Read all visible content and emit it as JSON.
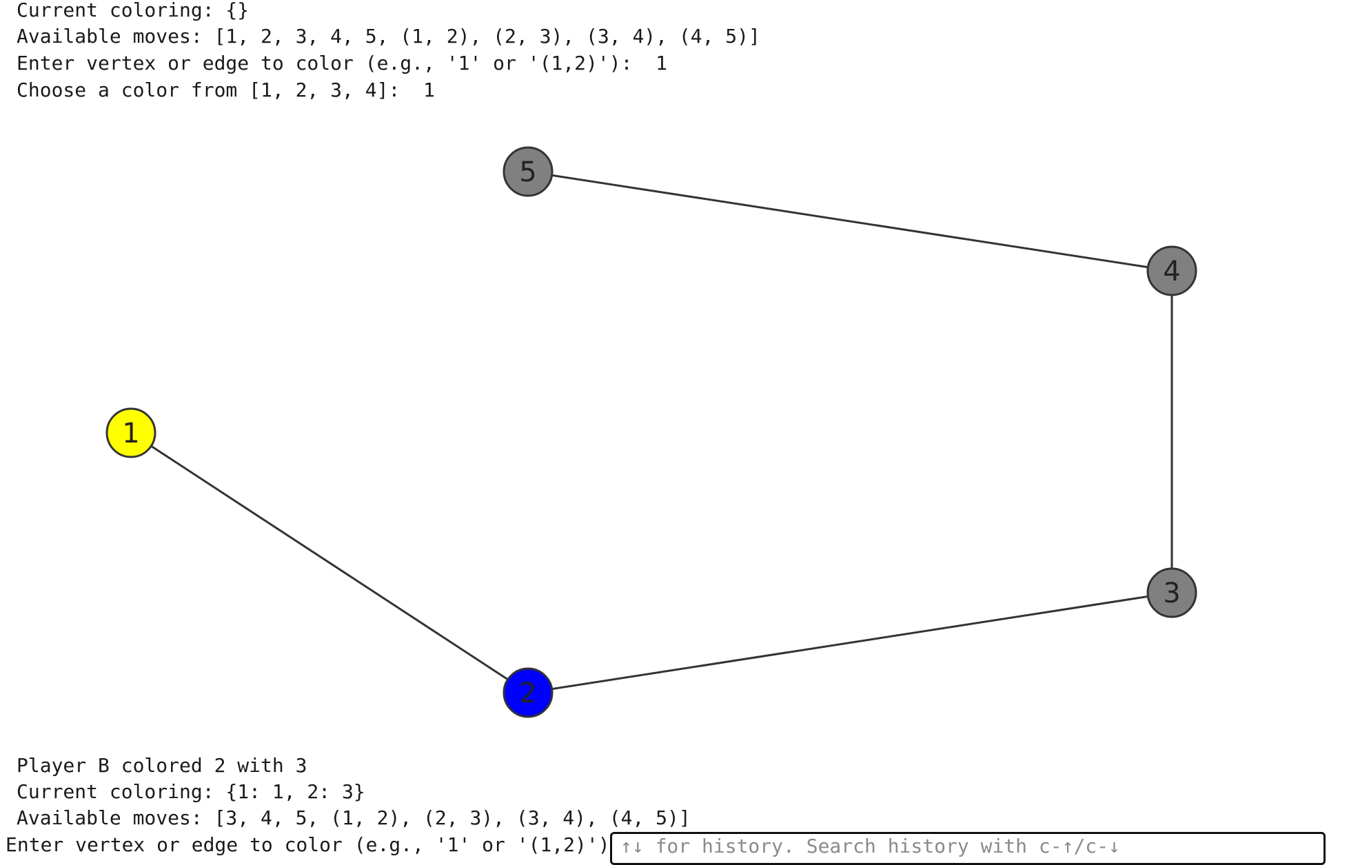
{
  "console": {
    "header_lines": [
      "Current coloring: {}",
      "Available moves: [1, 2, 3, 4, 5, (1, 2), (2, 3), (3, 4), (4, 5)]",
      "Enter vertex or edge to color (e.g., '1' or '(1,2)'):  1",
      "Choose a color from [1, 2, 3, 4]:  1"
    ],
    "footer_lines": [
      "Player B colored 2 with 3",
      "Current coloring: {1: 1, 2: 3}",
      "Available moves: [3, 4, 5, (1, 2), (2, 3), (3, 4), (4, 5)]"
    ],
    "prompt_label": "Enter vertex or edge to color (e.g., '1' or '(1,2)'): ",
    "input_placeholder": "↑↓ for history. Search history with c-↑/c-↓",
    "input_value": ""
  },
  "graph": {
    "nodes": [
      {
        "id": "1",
        "label": "1",
        "color": "#ffff00"
      },
      {
        "id": "2",
        "label": "2",
        "color": "#0000ff"
      },
      {
        "id": "3",
        "label": "3",
        "color": "#808080"
      },
      {
        "id": "4",
        "label": "4",
        "color": "#808080"
      },
      {
        "id": "5",
        "label": "5",
        "color": "#808080"
      }
    ],
    "edges": [
      [
        "1",
        "2"
      ],
      [
        "2",
        "3"
      ],
      [
        "3",
        "4"
      ],
      [
        "4",
        "5"
      ]
    ],
    "edge_color": "#333333",
    "node_border_color": "#333333"
  }
}
